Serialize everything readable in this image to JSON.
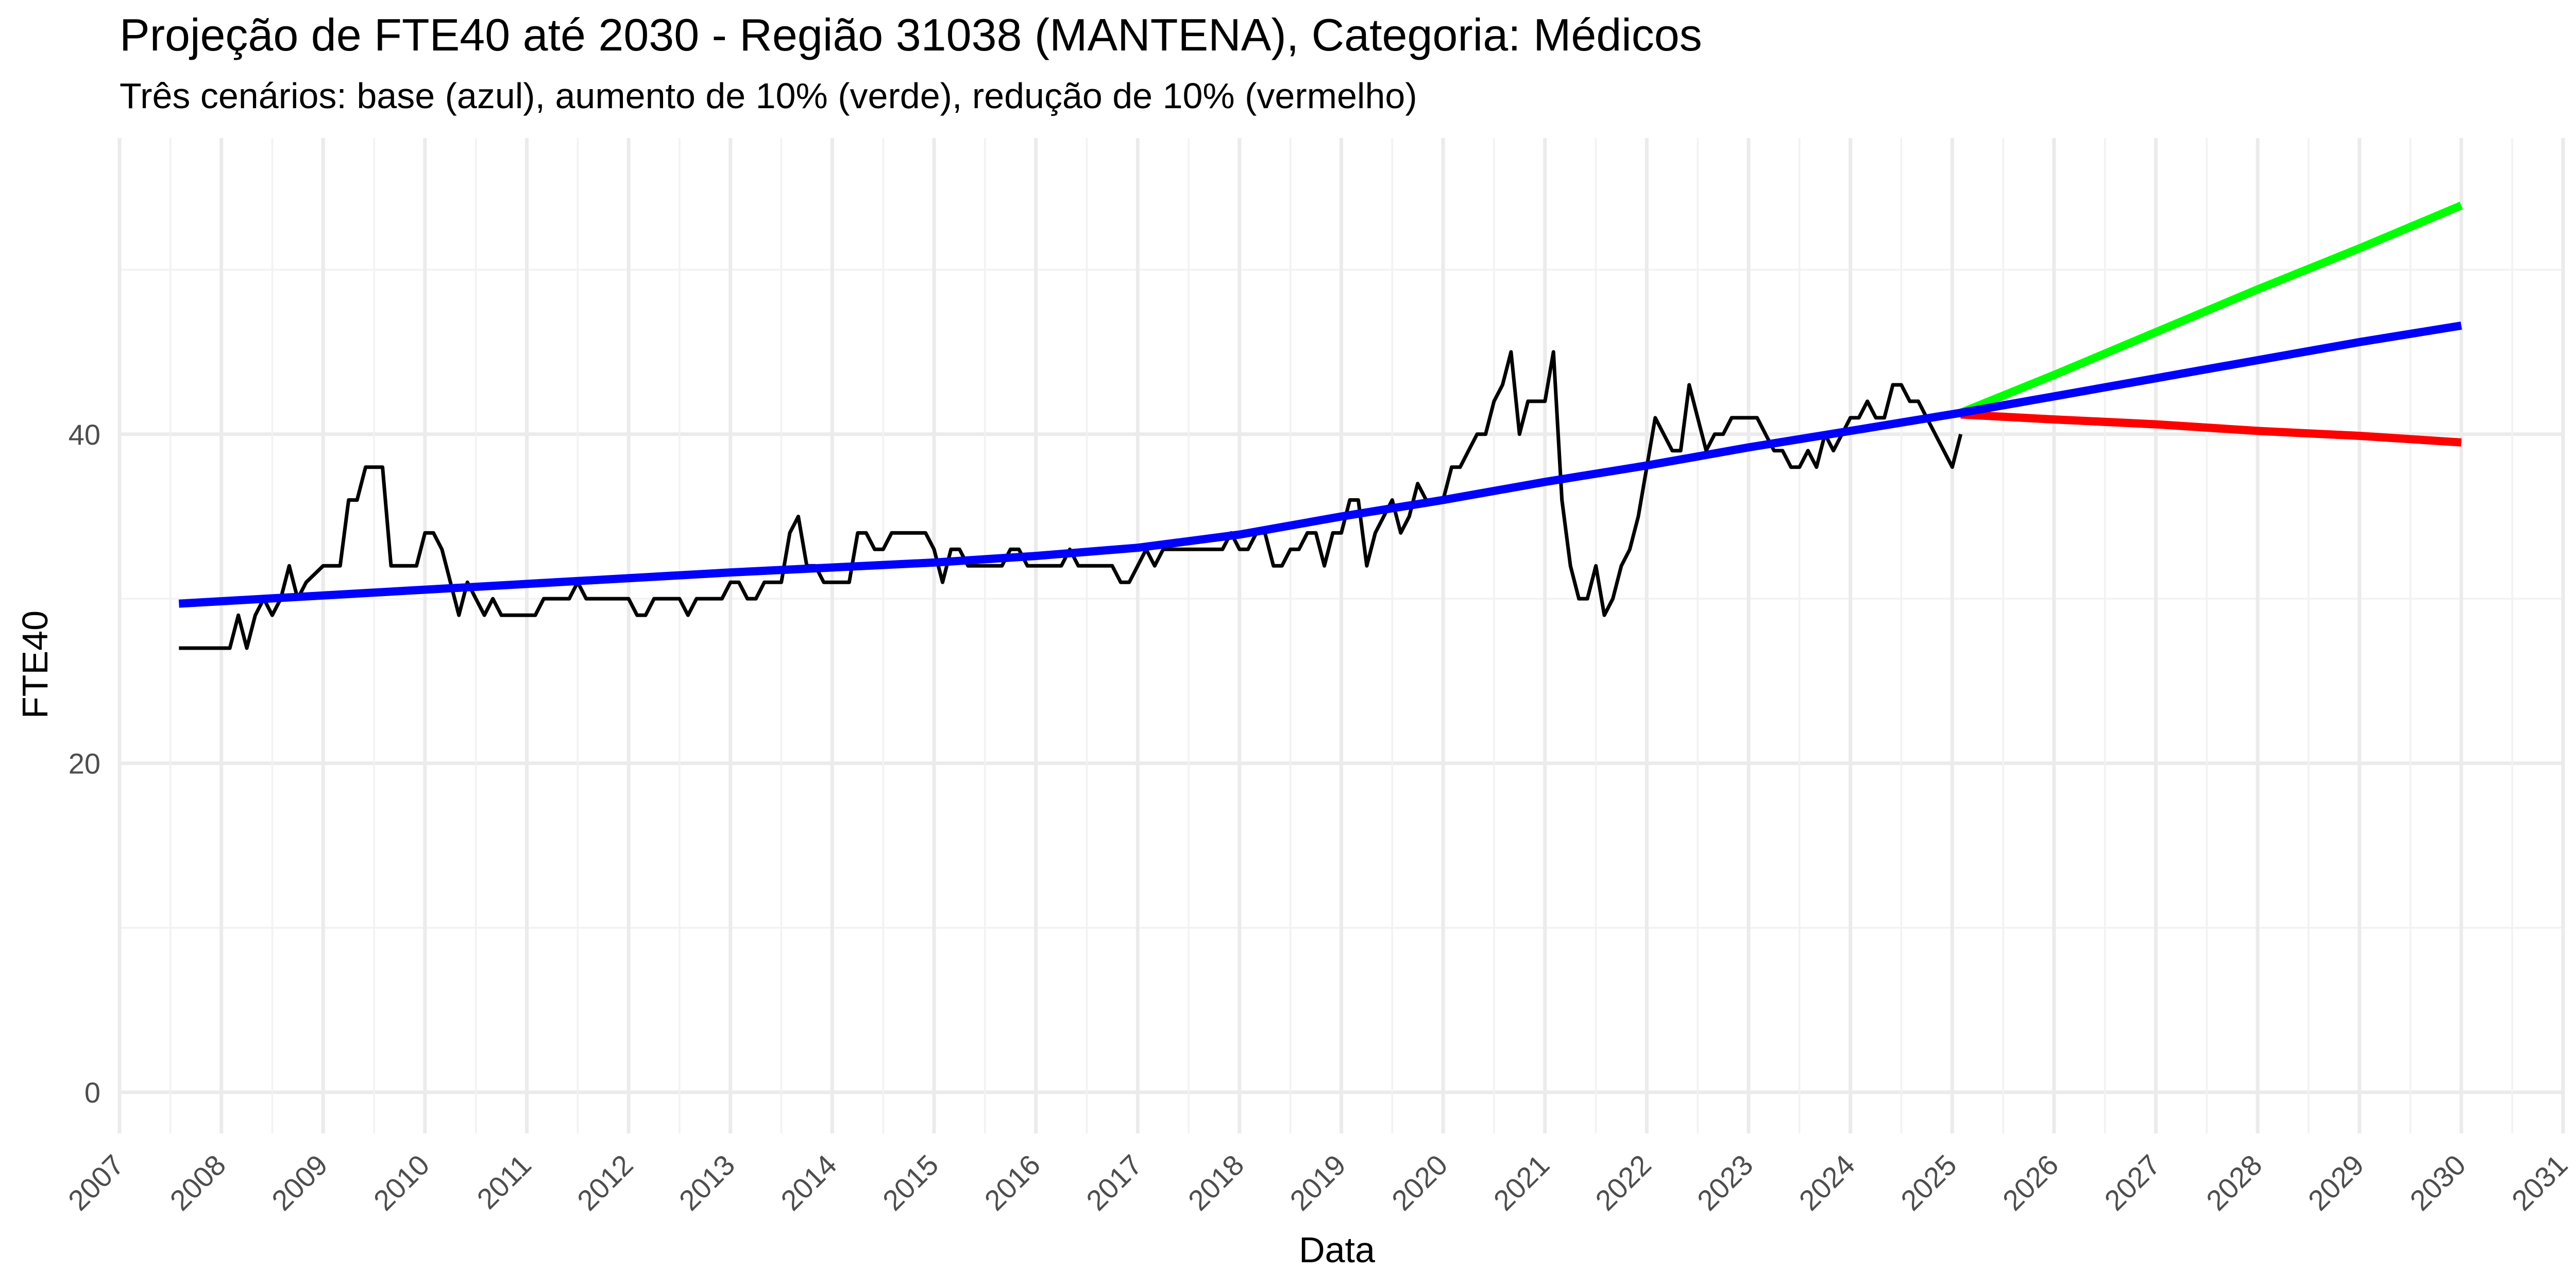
{
  "chart_data": {
    "type": "line",
    "title": "Projeção de FTE40 até 2030 - Região 31038 (MANTENA), Categoria: Médicos",
    "subtitle": "Três cenários: base (azul), aumento de 10% (verde), redução de 10% (vermelho)",
    "xlabel": "Data",
    "ylabel": "FTE40",
    "x_ticks": [
      "2007",
      "2008",
      "2009",
      "2010",
      "2011",
      "2012",
      "2013",
      "2014",
      "2015",
      "2016",
      "2017",
      "2018",
      "2019",
      "2020",
      "2021",
      "2022",
      "2023",
      "2024",
      "2025",
      "2026",
      "2027",
      "2028",
      "2029",
      "2030",
      "2031"
    ],
    "y_ticks": [
      0,
      20,
      40
    ],
    "xlim": [
      "2007-01-01",
      "2031-01-01"
    ],
    "ylim": [
      -2.5,
      58
    ],
    "grid": true,
    "legend": "none",
    "colors": {
      "observed": "#000000",
      "base": "#0000ff",
      "increase": "#00ff00",
      "decrease": "#ff0000",
      "grid": "#ebebeb"
    },
    "series": [
      {
        "x": [
          "2007-08-01",
          "2007-10-01",
          "2007-12-01",
          "2008-01-01",
          "2008-02-01",
          "2008-03-01",
          "2008-04-01",
          "2008-05-01",
          "2008-06-01",
          "2008-07-01",
          "2008-08-01",
          "2008-09-01",
          "2008-10-01",
          "2008-11-01",
          "2009-01-01",
          "2009-02-01",
          "2009-03-01",
          "2009-04-01",
          "2009-05-01",
          "2009-06-01",
          "2009-07-01",
          "2009-08-01",
          "2009-09-01",
          "2009-10-01",
          "2009-11-01",
          "2009-12-01",
          "2010-01-01",
          "2010-02-01",
          "2010-03-01",
          "2010-04-01",
          "2010-05-01",
          "2010-06-01",
          "2010-07-01",
          "2010-08-01",
          "2010-09-01",
          "2010-10-01",
          "2010-11-01",
          "2011-01-01",
          "2011-02-01",
          "2011-03-01",
          "2011-04-01",
          "2011-05-01",
          "2011-06-01",
          "2011-07-01",
          "2011-08-01",
          "2011-09-01",
          "2011-10-01",
          "2011-11-01",
          "2011-12-01",
          "2012-01-01",
          "2012-02-01",
          "2012-03-01",
          "2012-04-01",
          "2012-05-01",
          "2012-06-01",
          "2012-07-01",
          "2012-08-01",
          "2012-09-01",
          "2012-10-01",
          "2012-11-01",
          "2012-12-01",
          "2013-01-01",
          "2013-02-01",
          "2013-03-01",
          "2013-04-01",
          "2013-05-01",
          "2013-06-01",
          "2013-07-01",
          "2013-08-01",
          "2013-09-01",
          "2013-10-01",
          "2013-11-01",
          "2013-12-01",
          "2014-01-01",
          "2014-02-01",
          "2014-03-01",
          "2014-04-01",
          "2014-05-01",
          "2014-06-01",
          "2014-07-01",
          "2014-08-01",
          "2014-09-01",
          "2014-10-01",
          "2014-11-01",
          "2014-12-01",
          "2015-01-01",
          "2015-02-01",
          "2015-03-01",
          "2015-04-01",
          "2015-05-01",
          "2015-06-01",
          "2015-07-01",
          "2015-08-01",
          "2015-09-01",
          "2015-10-01",
          "2015-11-01",
          "2015-12-01",
          "2016-01-01",
          "2016-02-01",
          "2016-03-01",
          "2016-04-01",
          "2016-05-01",
          "2016-06-01",
          "2016-07-01",
          "2016-08-01",
          "2016-09-01",
          "2016-10-01",
          "2016-11-01",
          "2016-12-01",
          "2017-01-01",
          "2017-02-01",
          "2017-03-01",
          "2017-04-01",
          "2017-05-01",
          "2017-06-01",
          "2017-07-01",
          "2017-08-01",
          "2017-09-01",
          "2017-10-01",
          "2017-11-01",
          "2017-12-01",
          "2018-01-01",
          "2018-02-01",
          "2018-03-01",
          "2018-04-01",
          "2018-05-01",
          "2018-06-01",
          "2018-07-01",
          "2018-08-01",
          "2018-09-01",
          "2018-10-01",
          "2018-11-01",
          "2018-12-01",
          "2019-01-01",
          "2019-02-01",
          "2019-03-01",
          "2019-04-01",
          "2019-05-01",
          "2019-06-01",
          "2019-07-01",
          "2019-08-01",
          "2019-09-01",
          "2019-10-01",
          "2019-11-01",
          "2019-12-01",
          "2020-01-01",
          "2020-02-01",
          "2020-03-01",
          "2020-04-01",
          "2020-05-01",
          "2020-06-01",
          "2020-07-01",
          "2020-08-01",
          "2020-09-01",
          "2020-10-01",
          "2020-11-01",
          "2020-12-01",
          "2021-01-01",
          "2021-02-01",
          "2021-03-01",
          "2021-04-01",
          "2021-05-01",
          "2021-06-01",
          "2021-07-01",
          "2021-08-01",
          "2021-09-01",
          "2021-10-01",
          "2021-11-01",
          "2021-12-01",
          "2022-01-01",
          "2022-02-01",
          "2022-03-01",
          "2022-04-01",
          "2022-05-01",
          "2022-06-01",
          "2022-07-01",
          "2022-08-01",
          "2022-09-01",
          "2022-10-01",
          "2022-11-01",
          "2022-12-01",
          "2023-01-01",
          "2023-02-01",
          "2023-03-01",
          "2023-04-01",
          "2023-05-01",
          "2023-06-01",
          "2023-07-01",
          "2023-08-01",
          "2023-09-01",
          "2023-10-01",
          "2023-11-01",
          "2023-12-01",
          "2024-01-01",
          "2024-02-01",
          "2024-03-01",
          "2024-04-01",
          "2024-05-01",
          "2024-06-01",
          "2024-07-01",
          "2024-08-01",
          "2024-09-01",
          "2024-10-01",
          "2024-11-01",
          "2024-12-01",
          "2025-01-01",
          "2025-02-01"
        ],
        "values": [
          27,
          27,
          27,
          27,
          27,
          29,
          27,
          29,
          30,
          29,
          30,
          32,
          30,
          31,
          32,
          32,
          32,
          36,
          36,
          38,
          38,
          38,
          32,
          32,
          32,
          32,
          34,
          34,
          33,
          31,
          29,
          31,
          30,
          29,
          30,
          29,
          29,
          29,
          29,
          30,
          30,
          30,
          30,
          31,
          30,
          30,
          30,
          30,
          30,
          30,
          29,
          29,
          30,
          30,
          30,
          30,
          29,
          30,
          30,
          30,
          30,
          31,
          31,
          30,
          30,
          31,
          31,
          31,
          34,
          35,
          32,
          32,
          31,
          31,
          31,
          31,
          34,
          34,
          33,
          33,
          34,
          34,
          34,
          34,
          34,
          33,
          31,
          33,
          33,
          32,
          32,
          32,
          32,
          32,
          33,
          33,
          32,
          32,
          32,
          32,
          32,
          33,
          32,
          32,
          32,
          32,
          32,
          31,
          31,
          32,
          33,
          32,
          33,
          33,
          33,
          33,
          33,
          33,
          33,
          33,
          34,
          33,
          33,
          34,
          34,
          32,
          32,
          33,
          33,
          34,
          34,
          32,
          34,
          34,
          36,
          36,
          32,
          34,
          35,
          36,
          34,
          35,
          37,
          36,
          36,
          36,
          38,
          38,
          39,
          40,
          40,
          42,
          43,
          45,
          40,
          42,
          42,
          42,
          45,
          36,
          32,
          30,
          30,
          32,
          29,
          30,
          32,
          33,
          35,
          38,
          41,
          40,
          39,
          39,
          43,
          41,
          39,
          40,
          40,
          41,
          41,
          41,
          41,
          40,
          39,
          39,
          38,
          38,
          39,
          38,
          40,
          39,
          40,
          41,
          41,
          42,
          41,
          41,
          43,
          43,
          42,
          42,
          41,
          40,
          39,
          38,
          40
        ]
      },
      {
        "name": "base (azul)",
        "x": [
          "2007-08-01",
          "2009-01-01",
          "2011-01-01",
          "2013-01-01",
          "2015-01-01",
          "2016-01-01",
          "2017-01-01",
          "2018-01-01",
          "2019-01-01",
          "2020-01-01",
          "2021-01-01",
          "2022-01-01",
          "2023-01-01",
          "2024-01-01",
          "2025-02-01",
          "2026-01-01",
          "2027-01-01",
          "2028-01-01",
          "2029-01-01",
          "2030-01-01"
        ],
        "values": [
          29.7,
          30.2,
          30.9,
          31.6,
          32.2,
          32.6,
          33.1,
          33.9,
          35.0,
          36.0,
          37.1,
          38.1,
          39.2,
          40.2,
          41.3,
          42.3,
          43.4,
          44.5,
          45.6,
          46.6
        ]
      },
      {
        "name": "aumento de 10% (verde)",
        "x": [
          "2025-02-01",
          "2026-01-01",
          "2027-01-01",
          "2028-01-01",
          "2029-01-01",
          "2030-01-01"
        ],
        "values": [
          41.3,
          43.6,
          46.2,
          48.8,
          51.3,
          53.9
        ]
      },
      {
        "name": "redução de 10% (vermelho)",
        "x": [
          "2025-02-01",
          "2026-01-01",
          "2027-01-01",
          "2028-01-01",
          "2029-01-01",
          "2030-01-01"
        ],
        "values": [
          41.2,
          40.9,
          40.6,
          40.2,
          39.9,
          39.5
        ]
      }
    ]
  }
}
